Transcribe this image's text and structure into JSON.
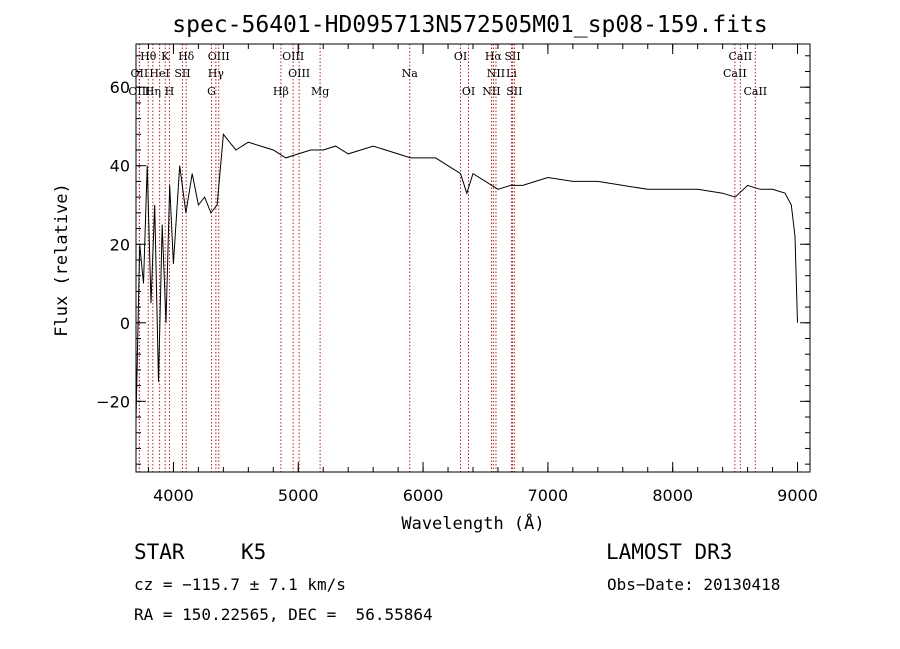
{
  "chart_data": {
    "type": "line",
    "title": "spec-56401-HD095713N572505M01_sp08-159.fits",
    "xlabel": "Wavelength (Å)",
    "ylabel": "Flux (relative)",
    "xlim": [
      3700,
      9100
    ],
    "ylim": [
      -38,
      71
    ],
    "xticks": [
      4000,
      5000,
      6000,
      7000,
      8000,
      9000
    ],
    "yticks": [
      -20,
      0,
      20,
      40,
      60
    ],
    "series": [
      {
        "name": "flux",
        "x": [
          3700,
          3730,
          3760,
          3790,
          3820,
          3850,
          3880,
          3910,
          3940,
          3970,
          4000,
          4050,
          4100,
          4150,
          4200,
          4250,
          4300,
          4350,
          4400,
          4450,
          4500,
          4600,
          4700,
          4800,
          4900,
          5000,
          5100,
          5200,
          5300,
          5400,
          5500,
          5600,
          5700,
          5800,
          5900,
          6000,
          6100,
          6200,
          6300,
          6350,
          6400,
          6500,
          6600,
          6700,
          6800,
          6900,
          7000,
          7200,
          7400,
          7600,
          7800,
          8000,
          8200,
          8400,
          8500,
          8600,
          8700,
          8800,
          8900,
          8950,
          8980,
          9000
        ],
        "y": [
          -25,
          20,
          10,
          40,
          5,
          30,
          -15,
          25,
          0,
          35,
          15,
          40,
          28,
          38,
          30,
          32,
          28,
          30,
          48,
          46,
          44,
          46,
          45,
          44,
          42,
          43,
          44,
          44,
          45,
          43,
          44,
          45,
          44,
          43,
          42,
          42,
          42,
          40,
          38,
          33,
          38,
          36,
          34,
          35,
          35,
          36,
          37,
          36,
          36,
          35,
          34,
          34,
          34,
          33,
          32,
          35,
          34,
          34,
          33,
          30,
          22,
          0
        ]
      }
    ],
    "spectral_lines": [
      {
        "name": "Hθ",
        "x": 3798,
        "row": 1
      },
      {
        "name": "K",
        "x": 3934,
        "row": 1
      },
      {
        "name": "Hδ",
        "x": 4102,
        "row": 1
      },
      {
        "name": "OIII",
        "x": 4363,
        "row": 1
      },
      {
        "name": "OIII",
        "x": 4959,
        "row": 1
      },
      {
        "name": "OI",
        "x": 6300,
        "row": 1
      },
      {
        "name": "Hα",
        "x": 6563,
        "row": 1
      },
      {
        "name": "SII",
        "x": 6717,
        "row": 1
      },
      {
        "name": "CaII",
        "x": 8542,
        "row": 1
      },
      {
        "name": "OII",
        "x": 3727,
        "row": 2
      },
      {
        "name": "HeI",
        "x": 3889,
        "row": 2
      },
      {
        "name": "SII",
        "x": 4072,
        "row": 2
      },
      {
        "name": "Hγ",
        "x": 4340,
        "row": 2
      },
      {
        "name": "OIII",
        "x": 5007,
        "row": 2
      },
      {
        "name": "Na",
        "x": 5893,
        "row": 2
      },
      {
        "name": "NII",
        "x": 6584,
        "row": 2
      },
      {
        "name": "Li",
        "x": 6708,
        "row": 2
      },
      {
        "name": "CaII",
        "x": 8498,
        "row": 2
      },
      {
        "name": "OIII",
        "x": 3727,
        "row": 3
      },
      {
        "name": "Hη",
        "x": 3835,
        "row": 3
      },
      {
        "name": "H",
        "x": 3968,
        "row": 3
      },
      {
        "name": "G",
        "x": 4305,
        "row": 3
      },
      {
        "name": "Hβ",
        "x": 4861,
        "row": 3
      },
      {
        "name": "Mg",
        "x": 5175,
        "row": 3
      },
      {
        "name": "OI",
        "x": 6364,
        "row": 3
      },
      {
        "name": "NII",
        "x": 6548,
        "row": 3
      },
      {
        "name": "SII",
        "x": 6731,
        "row": 3
      },
      {
        "name": "CaII",
        "x": 8662,
        "row": 3
      }
    ]
  },
  "info": {
    "object_type": "STAR",
    "subclass": "K5",
    "survey": "LAMOST DR3",
    "cz": "cz = −115.7 ± 7.1 km/s",
    "obs_date": "Obs−Date: 20130418",
    "coords": "RA = 150.22565, DEC =  56.55864"
  },
  "colors": {
    "line_marker": "#b22222",
    "spectrum": "#000000"
  }
}
